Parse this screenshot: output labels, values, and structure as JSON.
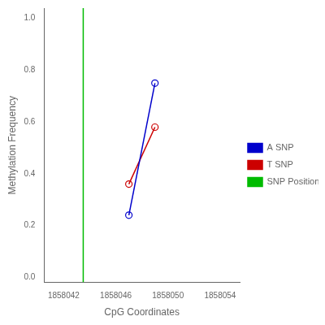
{
  "chart_data": {
    "type": "line",
    "xlabel": "CpG Coordinates",
    "ylabel": "Methylation Frequency",
    "xlim": [
      1858040.5,
      1858055.5
    ],
    "ylim": [
      -0.02,
      1.04
    ],
    "xticks": [
      1858042,
      1858046,
      1858050,
      1858054
    ],
    "yticks": [
      {
        "value": 0.0,
        "label": "0.0"
      },
      0.2,
      0.4,
      0.6,
      0.8,
      {
        "value": 1.0,
        "label": "1.0"
      }
    ],
    "grid": false,
    "legend": "right",
    "series": [
      {
        "name": "A SNP",
        "color": "#0000CC",
        "marker": "circle",
        "x": [
          1858047,
          1858049
        ],
        "values": [
          0.24,
          0.75
        ]
      },
      {
        "name": "T SNP",
        "color": "#CC0000",
        "marker": "circle",
        "x": [
          1858047,
          1858049
        ],
        "values": [
          0.36,
          0.58
        ]
      },
      {
        "name": "SNP Position",
        "type": "vline",
        "color": "#00BB00",
        "x": 1858043.5
      }
    ]
  }
}
